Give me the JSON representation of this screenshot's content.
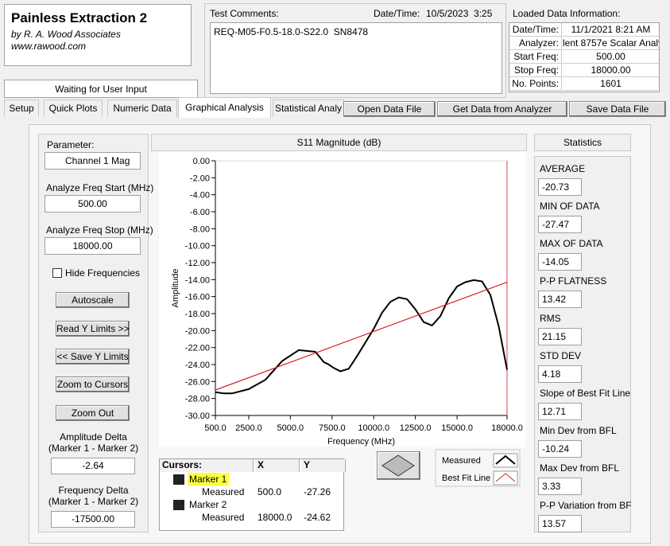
{
  "app": {
    "title": "Painless Extraction 2",
    "by": "by R. A. Wood Associates",
    "url": "www.rawood.com",
    "status": "Waiting for User Input"
  },
  "comments": {
    "label": "Test Comments:",
    "datetime_label": "Date/Time:",
    "datetime": "10/5/2023  3:25",
    "text": "REQ-M05-F0.5-18.0-S22.0  SN8478"
  },
  "loaded": {
    "title": "Loaded Data Information:",
    "rows": [
      [
        "Date/Time:",
        "11/1/2021 8:21 AM"
      ],
      [
        "Analyzer:",
        "lent 8757e Scalar Analy"
      ],
      [
        "Start Freq:",
        "500.00"
      ],
      [
        "Stop Freq:",
        "18000.00"
      ],
      [
        "No. Points:",
        "1601"
      ]
    ]
  },
  "tabs": [
    "Setup",
    "Quick Plots",
    "Numeric Data",
    "Graphical Analysis",
    "Statistical Analy"
  ],
  "buttons": [
    "Open Data File",
    "Get Data from Analyzer",
    "Save Data File"
  ],
  "params": {
    "parameter_label": "Parameter:",
    "parameter": "Channel 1 Mag",
    "start_label": "Analyze Freq Start (MHz)",
    "start": "500.00",
    "stop_label": "Analyze Freq Stop (MHz)",
    "stop": "18000.00",
    "hide": "Hide Frequencies",
    "buttons": [
      "Autoscale",
      "Read Y Limits >>",
      "<< Save Y Limits",
      "Zoom to Cursors",
      "Zoom Out"
    ],
    "amp_label": "Amplitude Delta\n(Marker 1 - Marker 2)",
    "amp": "-2.64",
    "freq_label": "Frequency Delta\n(Marker 1 - Marker 2)",
    "freq": "-17500.00"
  },
  "statistics": {
    "title": "Statistics",
    "items": [
      [
        "AVERAGE",
        "-20.73"
      ],
      [
        "MIN OF DATA",
        "-27.47"
      ],
      [
        "MAX OF DATA",
        "-14.05"
      ],
      [
        "P-P FLATNESS",
        "13.42"
      ],
      [
        "RMS",
        "21.15"
      ],
      [
        "STD DEV",
        "4.18"
      ],
      [
        "Slope of Best Fit Line",
        "12.71"
      ],
      [
        "Min Dev from BFL",
        "-10.24"
      ],
      [
        "Max Dev from BFL",
        "3.33"
      ],
      [
        "P-P Variation from BF",
        "13.57"
      ]
    ]
  },
  "cursors": {
    "header": [
      "Cursors:",
      "X",
      "Y"
    ],
    "rows": [
      [
        "Marker 1"
      ],
      [
        "Measured",
        "500.0",
        "-27.26"
      ],
      [
        "Marker 2"
      ],
      [
        "Measured",
        "18000.0",
        "-24.62"
      ]
    ]
  },
  "chart_data": {
    "type": "line",
    "title": "S11 Magnitude (dB)",
    "xlabel": "Frequency (MHz)",
    "ylabel": "Amplitude",
    "xlim": [
      500,
      18000
    ],
    "ylim": [
      -30,
      0
    ],
    "xticks": [
      {
        "value": 500,
        "label": "500.0"
      },
      {
        "value": 2500,
        "label": "2500.0"
      },
      {
        "value": 5000,
        "label": "5000.0"
      },
      {
        "value": 7500,
        "label": "7500.0"
      },
      {
        "value": 10000,
        "label": "10000.0"
      },
      {
        "value": 12500,
        "label": "12500.0"
      },
      {
        "value": 15000,
        "label": "15000.0"
      },
      {
        "value": 18000,
        "label": "18000.0"
      }
    ],
    "yticks": [
      {
        "value": 0,
        "label": "0.00"
      },
      {
        "value": -2,
        "label": "-2.00"
      },
      {
        "value": -4,
        "label": "-4.00"
      },
      {
        "value": -6,
        "label": "-6.00"
      },
      {
        "value": -8,
        "label": "-8.00"
      },
      {
        "value": -10,
        "label": "-10.00"
      },
      {
        "value": -12,
        "label": "-12.00"
      },
      {
        "value": -14,
        "label": "-14.00"
      },
      {
        "value": -16,
        "label": "-16.00"
      },
      {
        "value": -18,
        "label": "-18.00"
      },
      {
        "value": -20,
        "label": "-20.00"
      },
      {
        "value": -22,
        "label": "-22.00"
      },
      {
        "value": -24,
        "label": "-24.00"
      },
      {
        "value": -26,
        "label": "-26.00"
      },
      {
        "value": -28,
        "label": "-28.00"
      },
      {
        "value": -30,
        "label": "-30.00"
      }
    ],
    "series": [
      {
        "name": "Measured",
        "color": "#000000",
        "x": [
          500,
          1000,
          1500,
          2500,
          3500,
          4500,
          5500,
          6500,
          7000,
          7300,
          7600,
          8000,
          8500,
          9000,
          10000,
          10500,
          11000,
          11500,
          12000,
          12500,
          13000,
          13500,
          14000,
          14500,
          15000,
          15500,
          16000,
          16500,
          17000,
          17500,
          18000
        ],
        "values": [
          -27.26,
          -27.4,
          -27.4,
          -26.9,
          -25.8,
          -23.6,
          -22.3,
          -22.5,
          -23.7,
          -24.0,
          -24.4,
          -24.8,
          -24.5,
          -23.0,
          -19.8,
          -17.9,
          -16.6,
          -16.1,
          -16.3,
          -17.5,
          -19.0,
          -19.4,
          -18.3,
          -16.2,
          -14.8,
          -14.3,
          -14.05,
          -14.2,
          -15.8,
          -19.5,
          -24.62
        ]
      },
      {
        "name": "Best Fit Line",
        "color": "#d62020",
        "x": [
          500,
          18000
        ],
        "values": [
          -27.0,
          -14.3
        ]
      }
    ]
  }
}
